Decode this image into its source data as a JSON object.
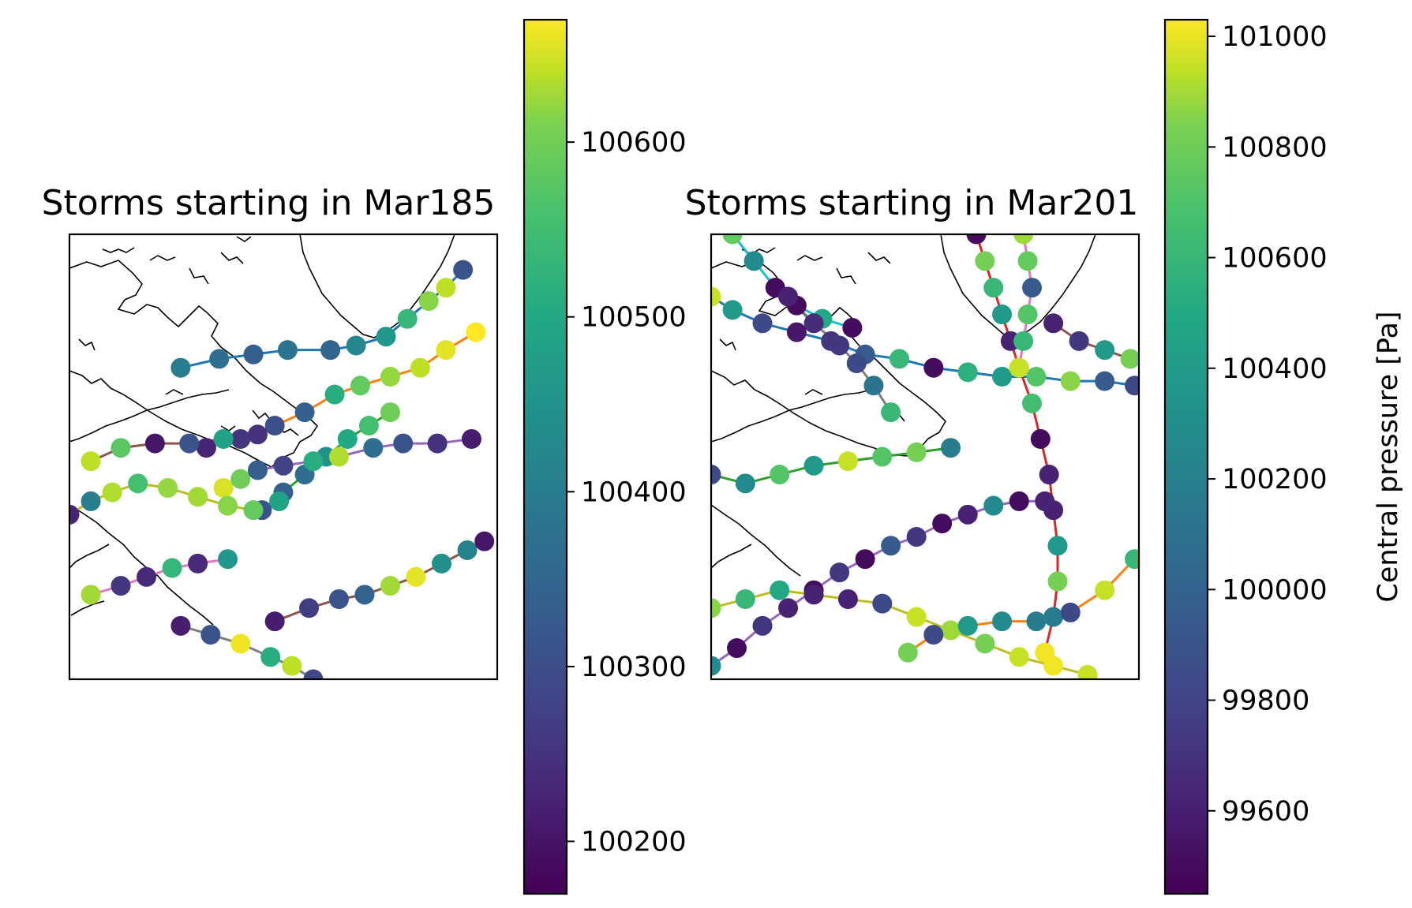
{
  "chart_data": [
    {
      "type": "scatter",
      "title": "Storms starting in Mar185",
      "colorbar": {
        "ticks": [
          "100600",
          "100500",
          "100400",
          "100300",
          "100200"
        ],
        "range": [
          100170,
          100670
        ],
        "label": "",
        "colormap": "viridis"
      },
      "grid": false,
      "series": [
        {
          "color": "#1f77b4",
          "points": [
            [
              0.26,
              0.3
            ],
            [
              0.35,
              0.28
            ],
            [
              0.43,
              0.27
            ],
            [
              0.51,
              0.26
            ],
            [
              0.61,
              0.26
            ],
            [
              0.67,
              0.25
            ],
            [
              0.74,
              0.23
            ],
            [
              0.79,
              0.19
            ],
            [
              0.84,
              0.15
            ],
            [
              0.88,
              0.12
            ],
            [
              0.92,
              0.08
            ]
          ],
          "values": [
            100380,
            100350,
            100320,
            100360,
            100330,
            100400,
            100430,
            100500,
            100580,
            100620,
            100300
          ]
        },
        {
          "color": "#ff7f0e",
          "points": [
            [
              0.32,
              0.48
            ],
            [
              0.4,
              0.46
            ],
            [
              0.48,
              0.43
            ],
            [
              0.55,
              0.4
            ],
            [
              0.62,
              0.36
            ],
            [
              0.68,
              0.34
            ],
            [
              0.75,
              0.32
            ],
            [
              0.82,
              0.3
            ],
            [
              0.88,
              0.26
            ],
            [
              0.95,
              0.22
            ]
          ],
          "values": [
            100220,
            100250,
            100290,
            100320,
            100480,
            100550,
            100590,
            100620,
            100650,
            100670
          ]
        },
        {
          "color": "#2ca02c",
          "points": [
            [
              0.45,
              0.62
            ],
            [
              0.5,
              0.58
            ],
            [
              0.55,
              0.54
            ],
            [
              0.6,
              0.5
            ],
            [
              0.65,
              0.46
            ],
            [
              0.7,
              0.43
            ],
            [
              0.75,
              0.4
            ]
          ],
          "values": [
            100300,
            100320,
            100350,
            100420,
            100470,
            100520,
            100560
          ]
        },
        {
          "color": "#8c564b",
          "points": [
            [
              0.05,
              0.51
            ],
            [
              0.12,
              0.48
            ],
            [
              0.2,
              0.47
            ],
            [
              0.28,
              0.47
            ],
            [
              0.36,
              0.46
            ],
            [
              0.44,
              0.45
            ]
          ],
          "values": [
            100620,
            100540,
            100200,
            100300,
            100460,
            100240
          ]
        },
        {
          "color": "#9467bd",
          "points": [
            [
              0.36,
              0.57
            ],
            [
              0.4,
              0.55
            ],
            [
              0.44,
              0.53
            ],
            [
              0.5,
              0.52
            ],
            [
              0.57,
              0.51
            ],
            [
              0.63,
              0.5
            ],
            [
              0.71,
              0.48
            ],
            [
              0.78,
              0.47
            ],
            [
              0.86,
              0.47
            ],
            [
              0.94,
              0.46
            ]
          ],
          "values": [
            100640,
            100560,
            100320,
            100270,
            100480,
            100610,
            100350,
            100300,
            100240,
            100210
          ]
        },
        {
          "color": "#8c564b",
          "points": [
            [
              0.48,
              0.87
            ],
            [
              0.56,
              0.84
            ],
            [
              0.63,
              0.82
            ],
            [
              0.69,
              0.81
            ],
            [
              0.75,
              0.79
            ],
            [
              0.81,
              0.77
            ],
            [
              0.87,
              0.74
            ],
            [
              0.93,
              0.71
            ],
            [
              0.97,
              0.69
            ]
          ],
          "values": [
            100210,
            100260,
            100300,
            100330,
            100600,
            100650,
            100420,
            100390,
            100200
          ]
        },
        {
          "color": "#bcbd22",
          "points": [
            [
              0.0,
              0.63
            ],
            [
              0.05,
              0.6
            ],
            [
              0.1,
              0.58
            ],
            [
              0.16,
              0.56
            ],
            [
              0.23,
              0.57
            ],
            [
              0.3,
              0.59
            ],
            [
              0.37,
              0.61
            ],
            [
              0.43,
              0.62
            ],
            [
              0.49,
              0.6
            ]
          ],
          "values": [
            100220,
            100380,
            100610,
            100520,
            100590,
            100600,
            100580,
            100550,
            100460
          ]
        },
        {
          "color": "#7f7f7f",
          "points": [
            [
              0.26,
              0.88
            ],
            [
              0.33,
              0.9
            ],
            [
              0.4,
              0.92
            ],
            [
              0.47,
              0.95
            ],
            [
              0.52,
              0.97
            ],
            [
              0.57,
              1.0
            ]
          ],
          "values": [
            100210,
            100300,
            100660,
            100480,
            100620,
            100280
          ]
        },
        {
          "color": "#e377c2",
          "points": [
            [
              0.05,
              0.81
            ],
            [
              0.12,
              0.79
            ],
            [
              0.18,
              0.77
            ],
            [
              0.24,
              0.75
            ],
            [
              0.3,
              0.74
            ],
            [
              0.37,
              0.73
            ]
          ],
          "values": [
            100600,
            100250,
            100230,
            100500,
            100230,
            100430
          ]
        }
      ]
    },
    {
      "type": "scatter",
      "title": "Storms starting in Mar201",
      "colorbar": {
        "ticks": [
          "101000",
          "100800",
          "100600",
          "100400",
          "100200",
          "100000",
          "99800",
          "99600"
        ],
        "range": [
          99450,
          101030
        ],
        "label": "Central pressure [Pa]",
        "colormap": "viridis"
      },
      "grid": false,
      "series": [
        {
          "color": "#1f77b4",
          "points": [
            [
              0.0,
              0.14
            ],
            [
              0.05,
              0.17
            ],
            [
              0.12,
              0.2
            ],
            [
              0.2,
              0.22
            ],
            [
              0.28,
              0.24
            ],
            [
              0.36,
              0.27
            ],
            [
              0.44,
              0.28
            ],
            [
              0.52,
              0.3
            ],
            [
              0.6,
              0.31
            ],
            [
              0.68,
              0.32
            ],
            [
              0.76,
              0.32
            ],
            [
              0.84,
              0.33
            ],
            [
              0.92,
              0.33
            ],
            [
              0.99,
              0.34
            ]
          ],
          "values": [
            100900,
            100300,
            99800,
            99550,
            99700,
            99900,
            100500,
            99500,
            100450,
            100300,
            100600,
            100750,
            99900,
            99800
          ]
        },
        {
          "color": "#d62728",
          "points": [
            [
              0.62,
              0.0
            ],
            [
              0.64,
              0.06
            ],
            [
              0.66,
              0.12
            ],
            [
              0.68,
              0.18
            ],
            [
              0.7,
              0.24
            ],
            [
              0.72,
              0.3
            ],
            [
              0.75,
              0.38
            ],
            [
              0.77,
              0.46
            ],
            [
              0.79,
              0.54
            ],
            [
              0.8,
              0.62
            ],
            [
              0.81,
              0.7
            ],
            [
              0.81,
              0.78
            ],
            [
              0.8,
              0.86
            ],
            [
              0.78,
              0.94
            ]
          ],
          "values": [
            99500,
            100700,
            100500,
            100300,
            99600,
            100700,
            100550,
            99500,
            99600,
            99600,
            100300,
            100700,
            100100,
            101000
          ]
        },
        {
          "color": "#2ca02c",
          "points": [
            [
              0.0,
              0.54
            ],
            [
              0.08,
              0.56
            ],
            [
              0.16,
              0.54
            ],
            [
              0.24,
              0.52
            ],
            [
              0.32,
              0.51
            ],
            [
              0.4,
              0.5
            ],
            [
              0.48,
              0.49
            ],
            [
              0.56,
              0.48
            ]
          ],
          "values": [
            99800,
            100200,
            100600,
            100300,
            100900,
            100600,
            100700,
            100100
          ]
        },
        {
          "color": "#9467bd",
          "points": [
            [
              0.0,
              0.97
            ],
            [
              0.06,
              0.93
            ],
            [
              0.12,
              0.88
            ],
            [
              0.18,
              0.84
            ],
            [
              0.24,
              0.8
            ],
            [
              0.3,
              0.76
            ],
            [
              0.36,
              0.73
            ],
            [
              0.42,
              0.7
            ],
            [
              0.48,
              0.68
            ],
            [
              0.54,
              0.65
            ],
            [
              0.6,
              0.63
            ],
            [
              0.66,
              0.61
            ],
            [
              0.72,
              0.6
            ],
            [
              0.78,
              0.6
            ]
          ],
          "values": [
            100200,
            99500,
            99700,
            99600,
            99500,
            99700,
            99500,
            99900,
            99700,
            99500,
            99600,
            100200,
            99500,
            99600
          ]
        },
        {
          "color": "#bcbd22",
          "points": [
            [
              0.0,
              0.84
            ],
            [
              0.08,
              0.82
            ],
            [
              0.16,
              0.8
            ],
            [
              0.24,
              0.81
            ],
            [
              0.32,
              0.82
            ],
            [
              0.4,
              0.83
            ],
            [
              0.48,
              0.86
            ],
            [
              0.56,
              0.89
            ],
            [
              0.64,
              0.92
            ],
            [
              0.72,
              0.95
            ],
            [
              0.8,
              0.97
            ],
            [
              0.88,
              0.99
            ]
          ],
          "values": [
            100750,
            100500,
            100400,
            99600,
            99600,
            99800,
            100900,
            100800,
            100700,
            100900,
            101000,
            100900
          ]
        },
        {
          "color": "#ff7f0e",
          "points": [
            [
              0.46,
              0.94
            ],
            [
              0.52,
              0.9
            ],
            [
              0.6,
              0.88
            ],
            [
              0.68,
              0.87
            ],
            [
              0.76,
              0.87
            ],
            [
              0.84,
              0.85
            ],
            [
              0.92,
              0.8
            ],
            [
              0.99,
              0.73
            ]
          ],
          "values": [
            100700,
            99800,
            100300,
            100200,
            100100,
            99800,
            100900,
            100500
          ]
        },
        {
          "color": "#e377c2",
          "points": [
            [
              0.73,
              0.0
            ],
            [
              0.74,
              0.06
            ],
            [
              0.75,
              0.12
            ],
            [
              0.74,
              0.18
            ],
            [
              0.73,
              0.24
            ],
            [
              0.72,
              0.3
            ]
          ],
          "values": [
            100800,
            100650,
            99900,
            100600,
            100500,
            100900
          ]
        },
        {
          "color": "#17becf",
          "points": [
            [
              0.05,
              0.0
            ],
            [
              0.1,
              0.06
            ],
            [
              0.15,
              0.12
            ],
            [
              0.2,
              0.16
            ],
            [
              0.26,
              0.19
            ],
            [
              0.33,
              0.21
            ]
          ],
          "values": [
            100650,
            100200,
            99500,
            99500,
            100400,
            99500
          ]
        },
        {
          "color": "#7f7f7f",
          "points": [
            [
              0.18,
              0.14
            ],
            [
              0.24,
              0.2
            ],
            [
              0.3,
              0.25
            ],
            [
              0.34,
              0.29
            ],
            [
              0.38,
              0.34
            ],
            [
              0.42,
              0.4
            ]
          ],
          "values": [
            99600,
            99650,
            99700,
            99800,
            100050,
            100500
          ]
        },
        {
          "color": "#8c564b",
          "points": [
            [
              0.8,
              0.2
            ],
            [
              0.86,
              0.24
            ],
            [
              0.92,
              0.26
            ],
            [
              0.98,
              0.28
            ]
          ],
          "values": [
            99600,
            99700,
            100300,
            100700
          ]
        }
      ]
    }
  ]
}
